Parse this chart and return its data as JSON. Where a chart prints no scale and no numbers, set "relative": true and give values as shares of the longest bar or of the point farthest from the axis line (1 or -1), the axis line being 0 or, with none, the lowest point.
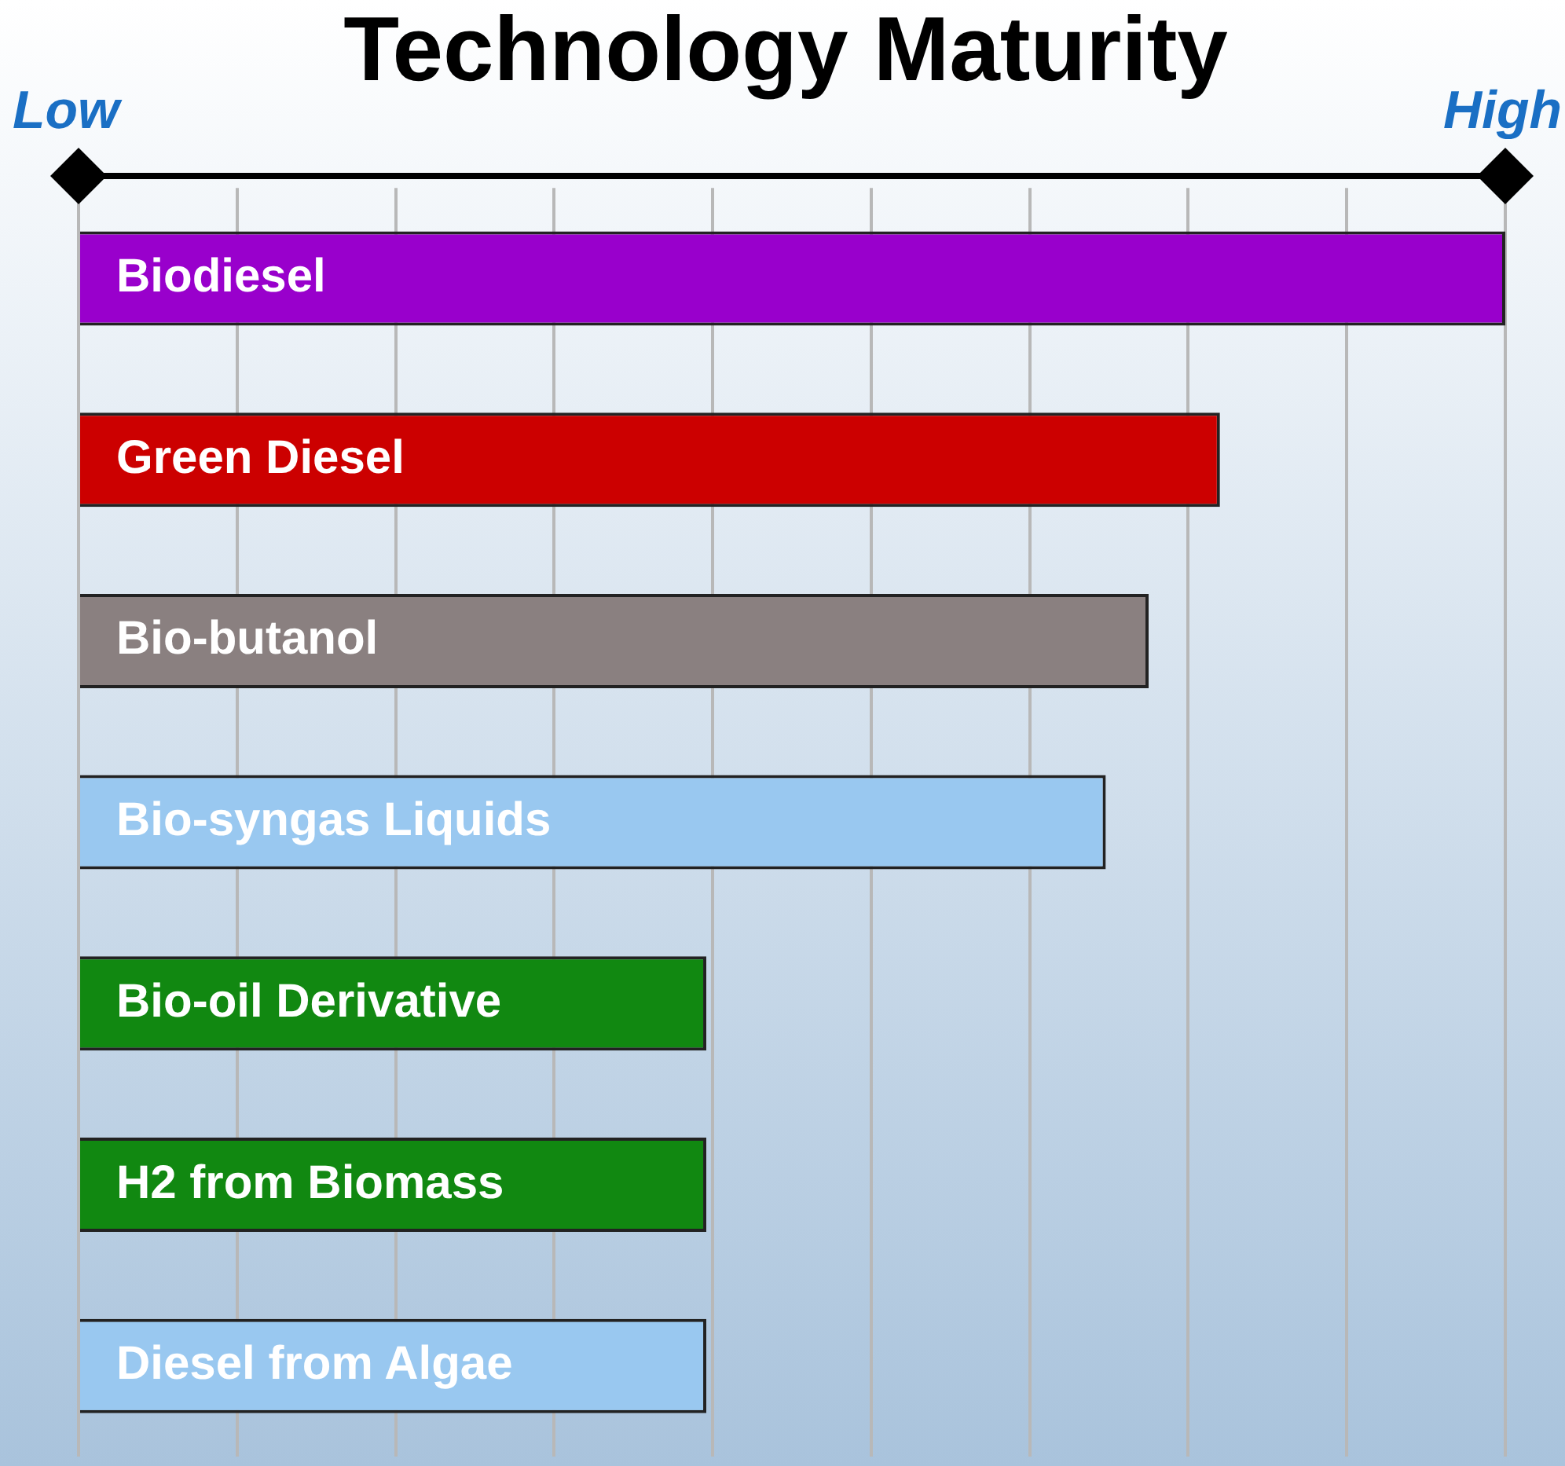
{
  "chart_data": {
    "type": "bar",
    "orientation": "horizontal",
    "relative": true,
    "title": "Technology Maturity",
    "annotations": [
      "Low",
      "High"
    ],
    "categories": [
      "Biodiesel",
      "Green Diesel",
      "Bio-butanol",
      "Bio-syngas Liquids",
      "Bio-oil Derivative",
      "H2 from Biomass",
      "Diesel from Algae"
    ],
    "values": [
      1,
      0.8,
      0.75,
      0.72,
      0.44,
      0.44,
      0.44
    ],
    "colors": [
      "#9900cc",
      "#cc0000",
      "#8a8080",
      "#99c8f0",
      "#118811",
      "#118811",
      "#99c8f0"
    ],
    "grid": "x"
  }
}
